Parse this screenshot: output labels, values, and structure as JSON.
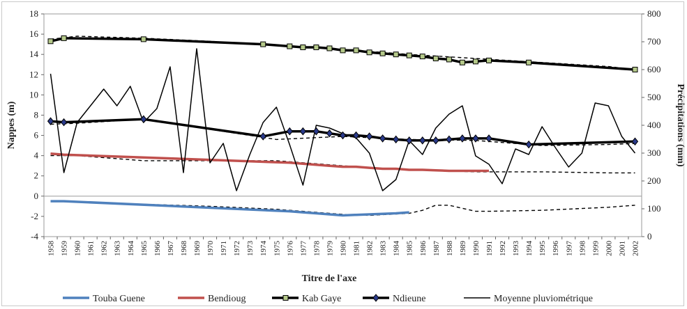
{
  "chart_data": {
    "type": "line",
    "title": "",
    "xlabel": "Titre de l'axe",
    "ylabel": "Nappes (m)",
    "y2label": "Précipitations (mm)",
    "ylim": [
      -4,
      18
    ],
    "y2lim": [
      0,
      800
    ],
    "yticks": [
      "-4",
      "-2",
      "0",
      "2",
      "4",
      "6",
      "8",
      "10",
      "12",
      "14",
      "16",
      "18"
    ],
    "y2ticks": [
      "0",
      "100",
      "200",
      "300",
      "400",
      "500",
      "600",
      "700",
      "800"
    ],
    "categories": [
      "1958",
      "1959",
      "1960",
      "1961",
      "1962",
      "1963",
      "1964",
      "1965",
      "1966",
      "1967",
      "1968",
      "1969",
      "1970",
      "1971",
      "1972",
      "1973",
      "1974",
      "1975",
      "1976",
      "1977",
      "1978",
      "1979",
      "1980",
      "1981",
      "1982",
      "1983",
      "1984",
      "1985",
      "1986",
      "1987",
      "1988",
      "1989",
      "1990",
      "1991",
      "1992",
      "1993",
      "1994",
      "1995",
      "1996",
      "1997",
      "1998",
      "1999",
      "2000",
      "2001",
      "2002"
    ],
    "legend_position": "bottom",
    "series": [
      {
        "name": "Touba Guene",
        "color": "#4f81bd",
        "axis": "left",
        "style": "thick",
        "marker": "none",
        "points": [
          [
            "1958",
            -0.5
          ],
          [
            "1959",
            -0.5
          ],
          [
            "1976",
            -1.5
          ],
          [
            "1977",
            -1.6
          ],
          [
            "1978",
            -1.7
          ],
          [
            "1979",
            -1.8
          ],
          [
            "1980",
            -1.9
          ],
          [
            "1981",
            -1.85
          ],
          [
            "1982",
            -1.8
          ],
          [
            "1984",
            -1.7
          ],
          [
            "1985",
            -1.6
          ]
        ]
      },
      {
        "name": "Bendioug",
        "color": "#c0504d",
        "axis": "left",
        "style": "thick",
        "marker": "none",
        "points": [
          [
            "1958",
            4.2
          ],
          [
            "1959",
            4.1
          ],
          [
            "1976",
            3.3
          ],
          [
            "1977",
            3.2
          ],
          [
            "1978",
            3.1
          ],
          [
            "1979",
            3.0
          ],
          [
            "1980",
            2.9
          ],
          [
            "1981",
            2.9
          ],
          [
            "1982",
            2.8
          ],
          [
            "1983",
            2.7
          ],
          [
            "1984",
            2.7
          ],
          [
            "1985",
            2.6
          ],
          [
            "1986",
            2.6
          ],
          [
            "1987",
            2.55
          ],
          [
            "1988",
            2.5
          ],
          [
            "1989",
            2.5
          ],
          [
            "1990",
            2.5
          ],
          [
            "1991",
            2.5
          ]
        ]
      },
      {
        "name": "Kab Gaye",
        "color": "#000000",
        "axis": "left",
        "style": "thick",
        "marker": "square",
        "points": [
          [
            "1958",
            15.3
          ],
          [
            "1959",
            15.6
          ],
          [
            "1965",
            15.5
          ],
          [
            "1974",
            15.0
          ],
          [
            "1976",
            14.8
          ],
          [
            "1977",
            14.7
          ],
          [
            "1978",
            14.7
          ],
          [
            "1979",
            14.6
          ],
          [
            "1980",
            14.4
          ],
          [
            "1981",
            14.4
          ],
          [
            "1982",
            14.2
          ],
          [
            "1983",
            14.1
          ],
          [
            "1984",
            14.0
          ],
          [
            "1985",
            13.9
          ],
          [
            "1986",
            13.8
          ],
          [
            "1987",
            13.6
          ],
          [
            "1988",
            13.5
          ],
          [
            "1989",
            13.2
          ],
          [
            "1990",
            13.3
          ],
          [
            "1991",
            13.4
          ],
          [
            "1994",
            13.2
          ],
          [
            "2002",
            12.5
          ]
        ]
      },
      {
        "name": "Ndieune",
        "color": "#000000",
        "axis": "left",
        "style": "thick",
        "marker": "diamond",
        "points": [
          [
            "1958",
            7.4
          ],
          [
            "1959",
            7.3
          ],
          [
            "1965",
            7.6
          ],
          [
            "1974",
            5.9
          ],
          [
            "1976",
            6.4
          ],
          [
            "1977",
            6.4
          ],
          [
            "1978",
            6.4
          ],
          [
            "1979",
            6.2
          ],
          [
            "1980",
            6.0
          ],
          [
            "1981",
            6.0
          ],
          [
            "1982",
            5.9
          ],
          [
            "1983",
            5.7
          ],
          [
            "1984",
            5.6
          ],
          [
            "1985",
            5.5
          ],
          [
            "1986",
            5.5
          ],
          [
            "1987",
            5.5
          ],
          [
            "1988",
            5.6
          ],
          [
            "1989",
            5.7
          ],
          [
            "1990",
            5.7
          ],
          [
            "1991",
            5.7
          ],
          [
            "1994",
            5.1
          ],
          [
            "2002",
            5.4
          ]
        ]
      },
      {
        "name": "Moyenne pluviométrique",
        "color": "#000000",
        "axis": "right",
        "style": "thin",
        "marker": "none",
        "values": [
          585,
          230,
          410,
          470,
          530,
          470,
          540,
          410,
          460,
          610,
          230,
          675,
          265,
          335,
          165,
          295,
          410,
          465,
          330,
          185,
          400,
          390,
          370,
          355,
          300,
          165,
          205,
          345,
          295,
          390,
          440,
          470,
          290,
          260,
          190,
          315,
          295,
          395,
          320,
          250,
          300,
          480,
          470,
          360,
          300
        ]
      }
    ],
    "trend_lines": [
      {
        "axis": "left",
        "points": [
          [
            "1958",
            15.5
          ],
          [
            "1960",
            15.8
          ],
          [
            "1965",
            15.6
          ],
          [
            "1970",
            15.3
          ],
          [
            "1975",
            14.9
          ],
          [
            "1980",
            14.5
          ],
          [
            "1985",
            14.0
          ],
          [
            "1990",
            13.6
          ],
          [
            "1995",
            13.2
          ],
          [
            "2000",
            12.8
          ],
          [
            "2002",
            12.5
          ]
        ]
      },
      {
        "axis": "left",
        "points": [
          [
            "1958",
            7.1
          ],
          [
            "1960",
            7.2
          ],
          [
            "1965",
            7.6
          ],
          [
            "1970",
            6.6
          ],
          [
            "1975",
            5.6
          ],
          [
            "1980",
            5.9
          ],
          [
            "1985",
            5.6
          ],
          [
            "1990",
            5.5
          ],
          [
            "1995",
            5.0
          ],
          [
            "2000",
            5.1
          ],
          [
            "2002",
            5.2
          ]
        ]
      },
      {
        "axis": "left",
        "points": [
          [
            "1958",
            4.0
          ],
          [
            "1960",
            4.0
          ],
          [
            "1965",
            3.5
          ],
          [
            "1970",
            3.5
          ],
          [
            "1975",
            3.5
          ],
          [
            "1980",
            3.0
          ],
          [
            "1985",
            2.6
          ],
          [
            "1990",
            2.4
          ],
          [
            "1995",
            2.4
          ],
          [
            "2000",
            2.3
          ],
          [
            "2002",
            2.3
          ]
        ]
      },
      {
        "axis": "left",
        "points": [
          [
            "1958",
            -0.5
          ],
          [
            "1960",
            -0.6
          ],
          [
            "1965",
            -0.8
          ],
          [
            "1970",
            -1.0
          ],
          [
            "1975",
            -1.3
          ],
          [
            "1980",
            -1.8
          ],
          [
            "1982",
            -1.9
          ],
          [
            "1985",
            -1.7
          ],
          [
            "1986",
            -1.4
          ],
          [
            "1987",
            -0.9
          ],
          [
            "1988",
            -0.9
          ],
          [
            "1990",
            -1.5
          ],
          [
            "1991",
            -1.5
          ],
          [
            "1995",
            -1.4
          ],
          [
            "2000",
            -1.1
          ],
          [
            "2002",
            -0.9
          ]
        ]
      }
    ]
  }
}
